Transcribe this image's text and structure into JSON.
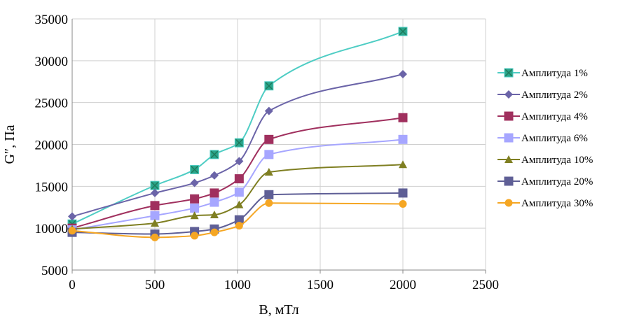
{
  "chart_data": {
    "type": "line",
    "title": "",
    "xlabel": "B, мТл",
    "ylabel": "G″, Па",
    "xlim": [
      0,
      2500
    ],
    "ylim": [
      5000,
      35000
    ],
    "x_ticks": [
      "0",
      "500",
      "1000",
      "1500",
      "2000",
      "2500"
    ],
    "y_ticks": [
      "5000",
      "10000",
      "15000",
      "20000",
      "25000",
      "30000",
      "35000"
    ],
    "grid": "vertical lines at x ticks; horizontal lines at y ticks",
    "legend_position": "right",
    "x": [
      0,
      500,
      740,
      860,
      1010,
      1190,
      2000
    ],
    "series": [
      {
        "name": "Амплитуда 1%",
        "color": "#4ecdc4",
        "marker": "x-square",
        "values": [
          10500,
          15100,
          17000,
          18800,
          20200,
          27000,
          33500
        ]
      },
      {
        "name": "Амплитуда 2%",
        "color": "#6b64a8",
        "marker": "diamond",
        "values": [
          11400,
          14200,
          15400,
          16300,
          18000,
          24000,
          28400
        ]
      },
      {
        "name": "Амплитуда 4%",
        "color": "#a0305e",
        "marker": "square",
        "values": [
          10000,
          12700,
          13500,
          14200,
          15900,
          20600,
          23200
        ]
      },
      {
        "name": "Амплитуда 6%",
        "color": "#a6a6ff",
        "marker": "square",
        "values": [
          9800,
          11500,
          12400,
          13100,
          14300,
          18800,
          20600
        ]
      },
      {
        "name": "Амплитуда 10%",
        "color": "#7f7f22",
        "marker": "triangle",
        "values": [
          9900,
          10600,
          11500,
          11600,
          12800,
          16700,
          17600
        ]
      },
      {
        "name": "Амплитуда 20%",
        "color": "#5f5f96",
        "marker": "square",
        "values": [
          9500,
          9300,
          9600,
          9900,
          11000,
          14000,
          14200
        ]
      },
      {
        "name": "Амплитуда 30%",
        "color": "#f5a623",
        "marker": "circle",
        "values": [
          9700,
          8900,
          9100,
          9500,
          10300,
          13000,
          12900
        ]
      }
    ]
  }
}
